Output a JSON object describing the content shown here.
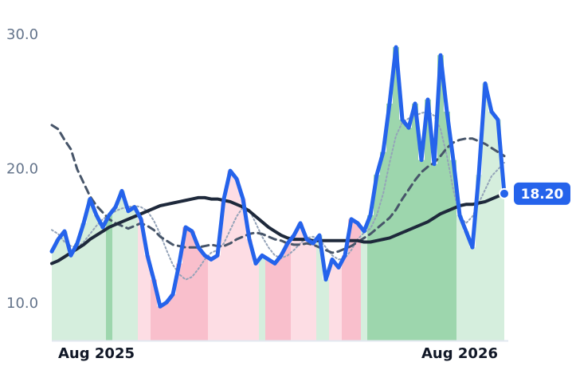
{
  "chart_data": {
    "type": "line",
    "categories": [
      null,
      null,
      null,
      null,
      null,
      null,
      null,
      "Aug 2025",
      null,
      null,
      null,
      null,
      null,
      null,
      null,
      null,
      null,
      null,
      null,
      null,
      null,
      null,
      null,
      null,
      null,
      null,
      null,
      null,
      null,
      null,
      null,
      null,
      null,
      null,
      null,
      null,
      null,
      null,
      null,
      null,
      null,
      null,
      null,
      null,
      null,
      null,
      null,
      null,
      null,
      null,
      null,
      null,
      null,
      null,
      null,
      null,
      null,
      null,
      null,
      null,
      null,
      null,
      null,
      null,
      "Aug 2026",
      null,
      null,
      null,
      null,
      null,
      null,
      null
    ],
    "ylim": [
      7.3,
      30.8
    ],
    "yticks": [
      {
        "value": 10,
        "label": "10.0"
      },
      {
        "value": 20,
        "label": "20.0"
      },
      {
        "value": 30,
        "label": "30.0"
      }
    ],
    "fill_colors": [
      "#d5eedd",
      "#d5eedd",
      "#d5eedd",
      "#d5eedd",
      "#d5eedd",
      "#d5eedd",
      "#d5eedd",
      "#d5eedd",
      "#d5eedd",
      "#9dd6ad",
      "#d5eedd",
      "#d5eedd",
      "#d5eedd",
      "#d5eedd",
      "#fddde4",
      "#fddde4",
      "#f9bfcc",
      "#f9bfcc",
      "#f9bfcc",
      "#f9bfcc",
      "#f9bfcc",
      "#f9bfcc",
      "#f9bfcc",
      "#f9bfcc",
      "#f9bfcc",
      "#fddde4",
      "#fddde4",
      "#fddde4",
      "#fddde4",
      "#fddde4",
      "#fddde4",
      "#fddde4",
      "#fddde4",
      "#d5eedd",
      "#f9bfcc",
      "#f9bfcc",
      "#f9bfcc",
      "#f9bfcc",
      "#fddde4",
      "#fddde4",
      "#fddde4",
      "#fddde4",
      "#d5eedd",
      "#d5eedd",
      "#fddde4",
      "#fddde4",
      "#f9bfcc",
      "#f9bfcc",
      "#f9bfcc",
      "#d5eedd",
      "#9dd6ad",
      "#9dd6ad",
      "#9dd6ad",
      "#9dd6ad",
      "#9dd6ad",
      "#9dd6ad",
      "#9dd6ad",
      "#9dd6ad",
      "#9dd6ad",
      "#9dd6ad",
      "#9dd6ad",
      "#9dd6ad",
      "#9dd6ad",
      "#9dd6ad",
      "#d5eedd",
      "#d5eedd",
      "#d5eedd",
      "#d5eedd",
      "#d5eedd",
      "#d5eedd",
      "#d5eedd",
      "#d5eedd"
    ],
    "series": [
      {
        "color": "#94a3b8",
        "style": "dotted",
        "width": 2,
        "values": [
          15.5,
          15.2,
          14.6,
          14.3,
          14.2,
          14.6,
          15.2,
          15.8,
          16.3,
          16.6,
          16.9,
          17.1,
          17.2,
          17.3,
          17.2,
          16.9,
          16.2,
          15.2,
          14.0,
          12.9,
          12.2,
          11.8,
          12.0,
          12.6,
          13.3,
          13.8,
          14.0,
          14.5,
          15.5,
          16.5,
          17.2,
          17.0,
          16.0,
          15.0,
          14.2,
          13.6,
          13.4,
          13.6,
          14.0,
          14.5,
          14.9,
          15.0,
          14.8,
          14.2,
          13.6,
          13.3,
          13.4,
          14.0,
          14.8,
          15.3,
          15.6,
          16.6,
          18.2,
          20.5,
          22.5,
          23.5,
          23.8,
          24.0,
          24.2,
          24.3,
          24.0,
          23.0,
          21.0,
          18.5,
          16.5,
          16.0,
          16.5,
          17.5,
          18.5,
          19.5,
          20.0,
          20.5
        ]
      },
      {
        "color": "#475569",
        "style": "dashed",
        "width": 3,
        "values": [
          23.3,
          23.0,
          22.2,
          21.5,
          20.0,
          19.0,
          18.0,
          17.3,
          16.8,
          16.3,
          16.0,
          15.8,
          15.6,
          15.8,
          16.0,
          15.8,
          15.5,
          15.0,
          14.7,
          14.4,
          14.3,
          14.2,
          14.2,
          14.2,
          14.3,
          14.4,
          14.3,
          14.3,
          14.5,
          14.8,
          15.0,
          15.2,
          15.3,
          15.2,
          15.0,
          14.8,
          14.7,
          14.5,
          14.4,
          14.4,
          14.5,
          14.4,
          14.2,
          14.0,
          13.8,
          13.9,
          14.1,
          14.3,
          14.6,
          14.9,
          15.2,
          15.6,
          16.0,
          16.4,
          17.0,
          17.8,
          18.5,
          19.2,
          19.8,
          20.2,
          20.5,
          21.0,
          21.6,
          22.0,
          22.2,
          22.3,
          22.3,
          22.1,
          21.9,
          21.6,
          21.3,
          21.0
        ]
      },
      {
        "color": "#1e293b",
        "style": "solid",
        "width": 4,
        "values": [
          13.0,
          13.2,
          13.5,
          13.8,
          14.1,
          14.4,
          14.8,
          15.1,
          15.4,
          15.7,
          15.9,
          16.1,
          16.3,
          16.5,
          16.7,
          16.9,
          17.1,
          17.3,
          17.4,
          17.5,
          17.6,
          17.7,
          17.8,
          17.9,
          17.9,
          17.8,
          17.8,
          17.7,
          17.6,
          17.4,
          17.2,
          16.9,
          16.5,
          16.1,
          15.7,
          15.4,
          15.1,
          14.9,
          14.8,
          14.8,
          14.8,
          14.7,
          14.7,
          14.7,
          14.7,
          14.7,
          14.7,
          14.7,
          14.7,
          14.6,
          14.6,
          14.7,
          14.8,
          14.9,
          15.1,
          15.3,
          15.5,
          15.7,
          15.9,
          16.1,
          16.4,
          16.7,
          16.9,
          17.1,
          17.3,
          17.4,
          17.4,
          17.5,
          17.6,
          17.8,
          18.0,
          18.2
        ]
      },
      {
        "color": "#2563eb",
        "style": "solid",
        "width": 5,
        "main": true,
        "values": [
          13.9,
          14.8,
          15.4,
          13.6,
          14.5,
          16.0,
          17.8,
          16.6,
          15.7,
          16.6,
          17.2,
          18.4,
          16.9,
          17.2,
          16.3,
          13.6,
          11.8,
          9.8,
          10.1,
          10.7,
          13.0,
          15.7,
          15.4,
          14.2,
          13.6,
          13.3,
          13.6,
          17.8,
          19.9,
          19.3,
          17.8,
          14.8,
          13.0,
          13.6,
          13.3,
          13.0,
          13.6,
          14.5,
          15.1,
          16.0,
          14.8,
          14.5,
          15.1,
          11.8,
          13.3,
          12.7,
          13.6,
          16.3,
          16.0,
          15.4,
          16.6,
          19.6,
          21.3,
          24.9,
          29.1,
          23.7,
          23.1,
          24.9,
          20.7,
          25.2,
          20.4,
          28.5,
          24.3,
          20.7,
          16.6,
          15.4,
          14.2,
          19.6,
          26.4,
          24.3,
          23.7,
          18.2
        ],
        "value_labels": [
          null,
          null,
          null,
          null,
          null,
          null,
          null,
          null,
          null,
          null,
          null,
          null,
          null,
          null,
          null,
          null,
          null,
          null,
          null,
          null,
          null,
          null,
          null,
          null,
          null,
          null,
          null,
          null,
          null,
          null,
          null,
          null,
          null,
          null,
          null,
          null,
          null,
          null,
          null,
          null,
          null,
          null,
          null,
          null,
          null,
          null,
          null,
          null,
          null,
          null,
          null,
          null,
          null,
          null,
          null,
          null,
          null,
          null,
          null,
          null,
          null,
          null,
          null,
          null,
          null,
          null,
          null,
          null,
          null,
          null,
          null,
          "18.20"
        ]
      }
    ]
  }
}
